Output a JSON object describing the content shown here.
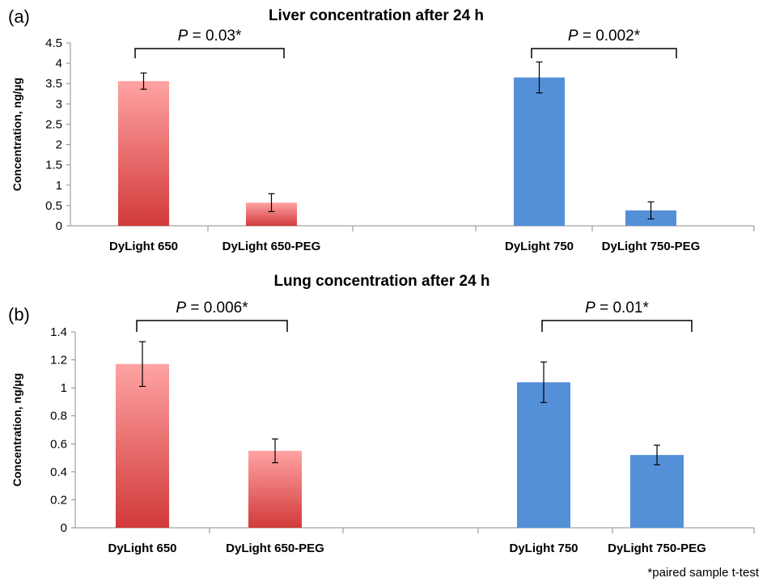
{
  "footnote": "*paired sample t-test",
  "colors": {
    "red_top": "#ffa3a3",
    "red_bottom": "#d23a3a",
    "blue": "#5490d8"
  },
  "chart_data": [
    {
      "type": "bar",
      "panel": "(a)",
      "title": "Liver concentration after 24 h",
      "ylabel": "Concentration, ng/µg",
      "xlabel": "",
      "ylim": [
        0,
        4.5
      ],
      "yticks": [
        "0",
        "0.5",
        "1",
        "1.5",
        "2",
        "2.5",
        "3",
        "3.5",
        "4",
        "4.5"
      ],
      "categories": [
        "DyLight 650",
        "DyLight 650-PEG",
        "DyLight 750",
        "DyLight 750-PEG"
      ],
      "values": [
        3.56,
        0.57,
        3.65,
        0.38
      ],
      "errors": [
        0.2,
        0.22,
        0.38,
        0.21
      ],
      "bar_colors": [
        "red",
        "red",
        "blue",
        "blue"
      ],
      "annotations": [
        {
          "italic": "P",
          "rest": " = 0.03*",
          "from": 0,
          "to": 1
        },
        {
          "italic": "P",
          "rest": " = 0.002*",
          "from": 2,
          "to": 3
        }
      ],
      "grid": false
    },
    {
      "type": "bar",
      "panel": "(b)",
      "title": "Lung concentration after 24 h",
      "ylabel": "Concentration, ng/µg",
      "xlabel": "",
      "ylim": [
        0,
        1.4
      ],
      "yticks": [
        "0",
        "0.2",
        "0.4",
        "0.6",
        "0.8",
        "1",
        "1.2",
        "1.4"
      ],
      "categories": [
        "DyLight 650",
        "DyLight 650-PEG",
        "DyLight 750",
        "DyLight 750-PEG"
      ],
      "values": [
        1.17,
        0.55,
        1.04,
        0.52
      ],
      "errors": [
        0.16,
        0.085,
        0.145,
        0.07
      ],
      "bar_colors": [
        "red",
        "red",
        "blue",
        "blue"
      ],
      "annotations": [
        {
          "italic": "P",
          "rest": " = 0.006*",
          "from": 0,
          "to": 1
        },
        {
          "italic": "P",
          "rest": " = 0.01*",
          "from": 2,
          "to": 3
        }
      ],
      "grid": false
    }
  ]
}
